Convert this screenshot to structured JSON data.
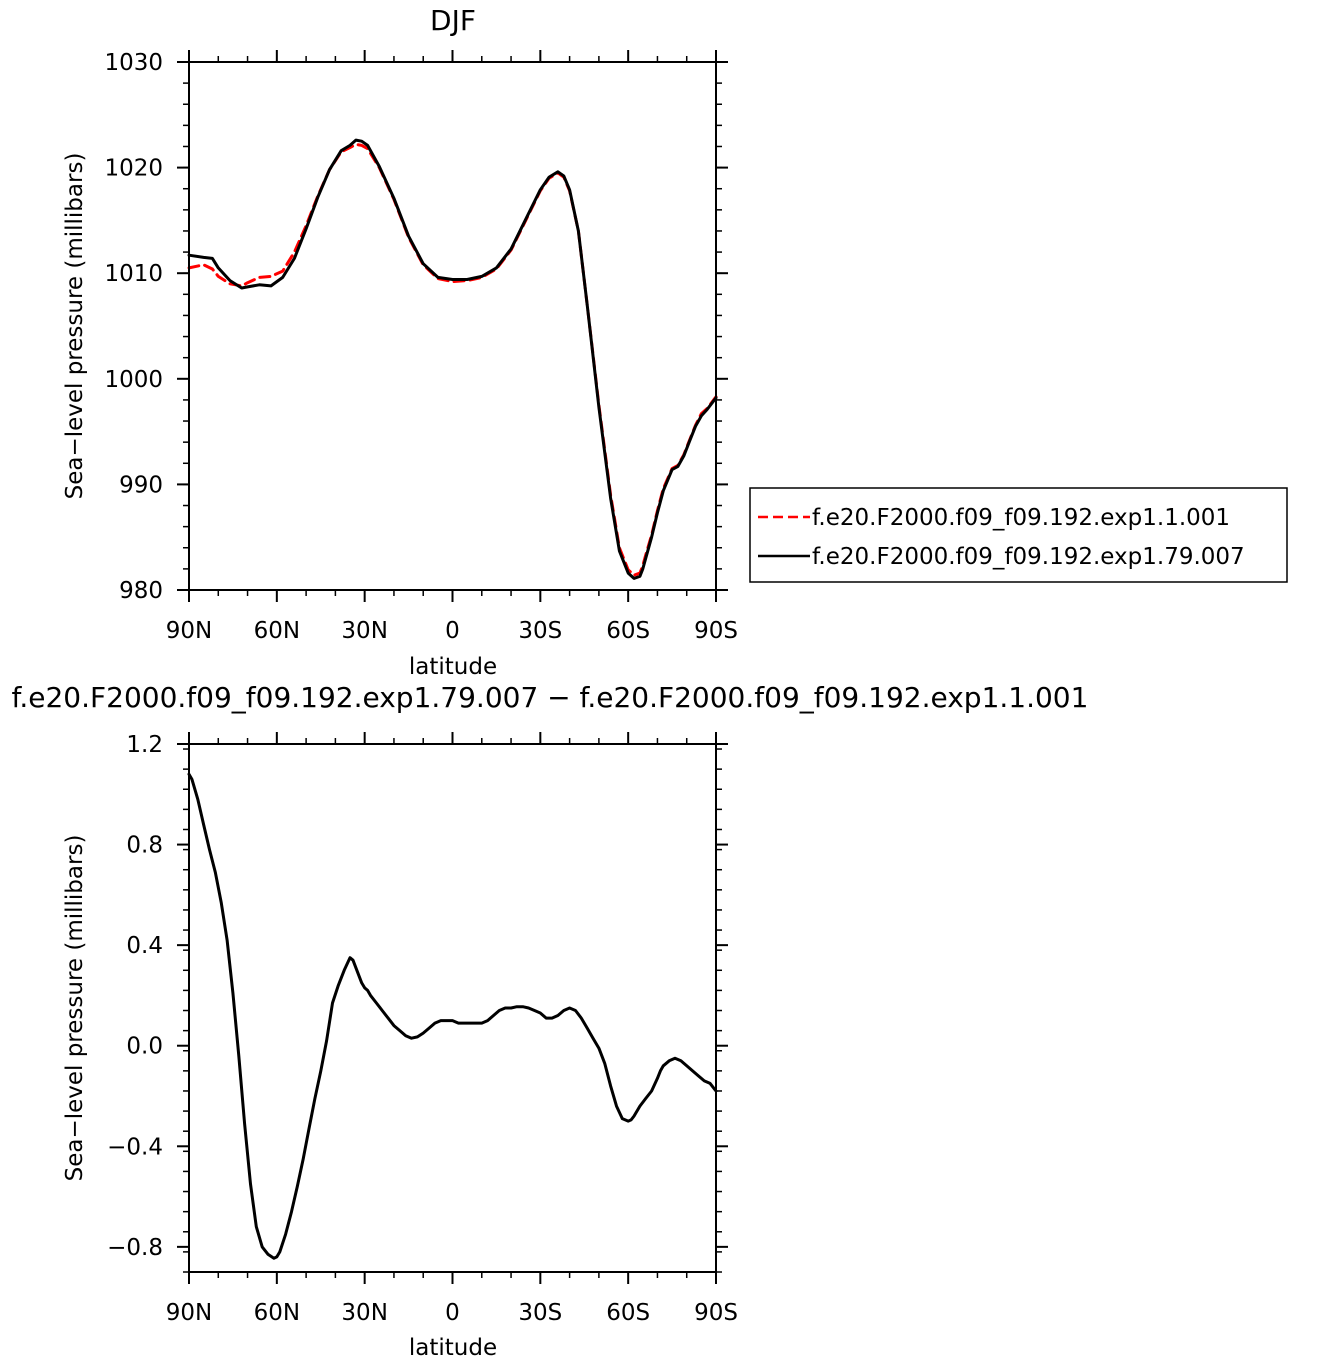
{
  "chart_data": [
    {
      "type": "line",
      "title": "DJF",
      "xlabel": "latitude",
      "ylabel": "Sea−level pressure (millibars)",
      "xlim": [
        90,
        -90
      ],
      "ylim": [
        980,
        1030
      ],
      "x_ticks": [
        {
          "value": 90,
          "label": "90N"
        },
        {
          "value": 60,
          "label": "60N"
        },
        {
          "value": 30,
          "label": "30N"
        },
        {
          "value": 0,
          "label": "0"
        },
        {
          "value": -30,
          "label": "30S"
        },
        {
          "value": -60,
          "label": "60S"
        },
        {
          "value": -90,
          "label": "90S"
        }
      ],
      "y_ticks": [
        {
          "value": 1030,
          "label": "1030"
        },
        {
          "value": 1020,
          "label": "1020"
        },
        {
          "value": 1010,
          "label": "1010"
        },
        {
          "value": 1000,
          "label": "1000"
        },
        {
          "value": 990,
          "label": "990"
        },
        {
          "value": 980,
          "label": "980"
        }
      ],
      "legend_position": "right",
      "series": [
        {
          "name": "f.e20.F2000.f09_f09.192.exp1.1.001",
          "color": "#ff0000",
          "dash": "dashed",
          "x": [
            90,
            85,
            82,
            80,
            76,
            72,
            70,
            66,
            62,
            58,
            54,
            50,
            46,
            42,
            38,
            35,
            33,
            31,
            29,
            25,
            20,
            15,
            10,
            5,
            0,
            -5,
            -10,
            -15,
            -20,
            -25,
            -30,
            -33,
            -36,
            -38,
            -40,
            -43,
            -46,
            -50,
            -54,
            -57,
            -60,
            -62,
            -64,
            -65,
            -66,
            -68,
            -70,
            -72,
            -75,
            -77,
            -79,
            -81,
            -83,
            -85,
            -87,
            -90
          ],
          "y": [
            1010.5,
            1010.8,
            1010.4,
            1009.7,
            1009.0,
            1008.8,
            1009.1,
            1009.6,
            1009.7,
            1010.2,
            1012.0,
            1014.5,
            1017.3,
            1019.8,
            1021.5,
            1021.9,
            1022.2,
            1022.1,
            1021.8,
            1020.0,
            1017.0,
            1013.4,
            1010.8,
            1009.5,
            1009.2,
            1009.3,
            1009.6,
            1010.4,
            1012.2,
            1015.0,
            1017.8,
            1019.0,
            1019.5,
            1019.1,
            1017.8,
            1014.0,
            1007.0,
            997.5,
            989.0,
            984.0,
            981.9,
            981.4,
            981.6,
            982.3,
            983.3,
            985.2,
            987.5,
            989.6,
            991.5,
            991.8,
            992.8,
            994.2,
            995.6,
            996.7,
            997.2,
            998.3
          ]
        },
        {
          "name": "f.e20.F2000.f09_f09.192.exp1.79.007",
          "color": "#000000",
          "dash": "solid",
          "x": [
            90,
            85,
            82,
            80,
            76,
            72,
            70,
            66,
            62,
            58,
            54,
            50,
            46,
            42,
            38,
            35,
            33,
            31,
            29,
            25,
            20,
            15,
            10,
            5,
            0,
            -5,
            -10,
            -15,
            -20,
            -25,
            -30,
            -33,
            -36,
            -38,
            -40,
            -43,
            -46,
            -50,
            -54,
            -57,
            -60,
            -62,
            -64,
            -65,
            -66,
            -68,
            -70,
            -72,
            -75,
            -77,
            -79,
            -81,
            -83,
            -85,
            -87,
            -90
          ],
          "y": [
            1011.7,
            1011.5,
            1011.4,
            1010.5,
            1009.3,
            1008.6,
            1008.7,
            1008.9,
            1008.8,
            1009.6,
            1011.4,
            1014.2,
            1017.2,
            1019.8,
            1021.6,
            1022.1,
            1022.6,
            1022.5,
            1022.1,
            1020.1,
            1017.1,
            1013.5,
            1010.9,
            1009.6,
            1009.4,
            1009.4,
            1009.7,
            1010.5,
            1012.3,
            1015.1,
            1017.9,
            1019.1,
            1019.6,
            1019.2,
            1017.9,
            1014.0,
            1007.0,
            997.3,
            988.7,
            983.7,
            981.6,
            981.1,
            981.3,
            982.0,
            983.0,
            985.0,
            987.3,
            989.4,
            991.4,
            991.7,
            992.7,
            994.1,
            995.5,
            996.5,
            997.1,
            998.2
          ]
        }
      ]
    },
    {
      "type": "line",
      "title": "f.e20.F2000.f09_f09.192.exp1.79.007 − f.e20.F2000.f09_f09.192.exp1.1.001",
      "xlabel": "latitude",
      "ylabel": "Sea−level pressure (millibars)",
      "xlim": [
        90,
        -90
      ],
      "ylim": [
        -0.9,
        1.2
      ],
      "x_ticks": [
        {
          "value": 90,
          "label": "90N"
        },
        {
          "value": 60,
          "label": "60N"
        },
        {
          "value": 30,
          "label": "30N"
        },
        {
          "value": 0,
          "label": "0"
        },
        {
          "value": -30,
          "label": "30S"
        },
        {
          "value": -60,
          "label": "60S"
        },
        {
          "value": -90,
          "label": "90S"
        }
      ],
      "y_ticks": [
        {
          "value": 1.2,
          "label": "1.2"
        },
        {
          "value": 0.8,
          "label": "0.8"
        },
        {
          "value": 0.4,
          "label": "0.4"
        },
        {
          "value": 0.0,
          "label": "0.0"
        },
        {
          "value": -0.4,
          "label": "−0.4"
        },
        {
          "value": -0.8,
          "label": "−0.8"
        }
      ],
      "series": [
        {
          "name": "",
          "color": "#000000",
          "dash": "solid",
          "x": [
            90,
            89,
            87,
            85,
            83,
            81,
            79,
            77,
            75,
            73,
            71,
            69,
            67,
            65,
            63,
            61,
            60,
            59,
            57,
            55,
            53,
            51,
            49,
            47,
            45,
            43,
            41,
            39,
            37,
            35,
            34,
            33,
            31,
            30,
            29,
            28,
            26,
            24,
            22,
            20,
            18,
            16,
            14,
            12,
            10,
            8,
            6,
            4,
            2,
            0,
            -2,
            -4,
            -6,
            -8,
            -10,
            -12,
            -14,
            -16,
            -18,
            -20,
            -22,
            -24,
            -26,
            -28,
            -30,
            -32,
            -34,
            -36,
            -38,
            -40,
            -42,
            -44,
            -46,
            -48,
            -50,
            -52,
            -54,
            -56,
            -58,
            -60,
            -61,
            -62,
            -64,
            -66,
            -68,
            -70,
            -71,
            -72,
            -74,
            -76,
            -78,
            -80,
            -82,
            -84,
            -86,
            -88,
            -90
          ],
          "y": [
            1.08,
            1.06,
            0.98,
            0.88,
            0.78,
            0.69,
            0.57,
            0.42,
            0.21,
            -0.04,
            -0.31,
            -0.55,
            -0.72,
            -0.8,
            -0.83,
            -0.845,
            -0.84,
            -0.82,
            -0.75,
            -0.66,
            -0.56,
            -0.45,
            -0.33,
            -0.21,
            -0.1,
            0.02,
            0.17,
            0.24,
            0.3,
            0.35,
            0.34,
            0.31,
            0.25,
            0.23,
            0.22,
            0.2,
            0.17,
            0.14,
            0.11,
            0.08,
            0.06,
            0.04,
            0.03,
            0.035,
            0.05,
            0.07,
            0.09,
            0.1,
            0.1,
            0.1,
            0.09,
            0.09,
            0.09,
            0.09,
            0.09,
            0.1,
            0.12,
            0.14,
            0.15,
            0.15,
            0.155,
            0.155,
            0.15,
            0.14,
            0.13,
            0.11,
            0.11,
            0.12,
            0.14,
            0.15,
            0.14,
            0.11,
            0.07,
            0.03,
            -0.01,
            -0.07,
            -0.16,
            -0.24,
            -0.29,
            -0.3,
            -0.295,
            -0.28,
            -0.24,
            -0.21,
            -0.18,
            -0.13,
            -0.1,
            -0.08,
            -0.06,
            -0.05,
            -0.06,
            -0.08,
            -0.1,
            -0.12,
            -0.14,
            -0.15,
            -0.18
          ]
        }
      ]
    }
  ]
}
